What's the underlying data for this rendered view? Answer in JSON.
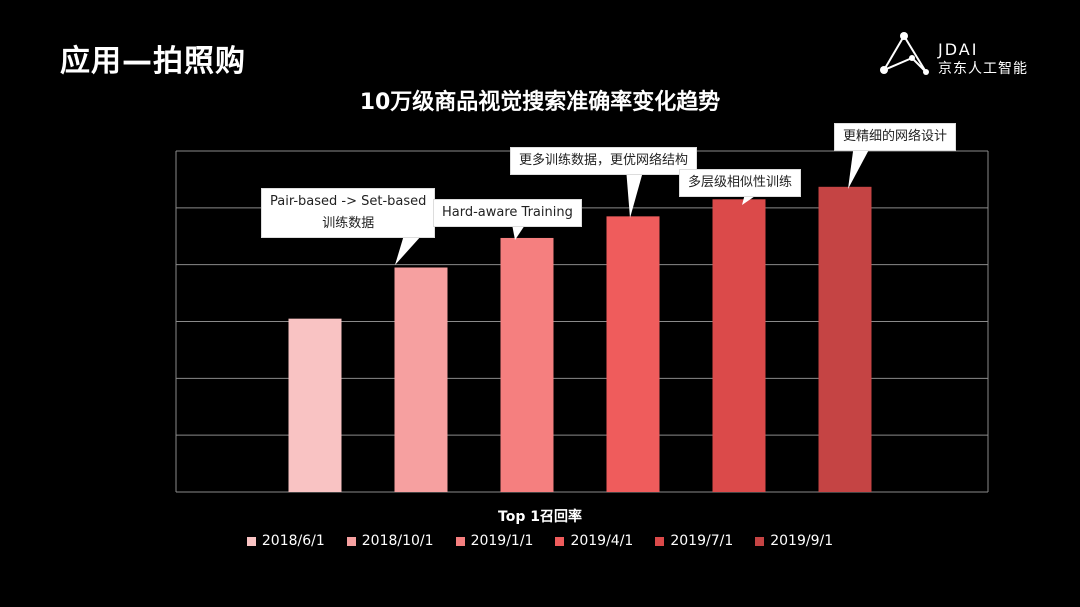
{
  "slide": {
    "title": "应用—拍照购",
    "logo_top": "JDAI",
    "logo_bottom": "京东人工智能"
  },
  "chart_data": {
    "type": "bar",
    "title": "10万级商品视觉搜索准确率变化趋势",
    "xlabel": "Top 1召回率",
    "ylabel": "",
    "ylim": [
      0,
      6
    ],
    "grid": true,
    "legend_placement": "bottom",
    "categories": [
      "2018/6/1",
      "2018/10/1",
      "2019/1/1",
      "2019/4/1",
      "2019/7/1",
      "2019/9/1"
    ],
    "values": [
      3.05,
      3.95,
      4.47,
      4.85,
      5.15,
      5.37
    ],
    "colors": [
      "#f9c3c3",
      "#f6a0a0",
      "#f57f7f",
      "#ef5c5c",
      "#db4a4a",
      "#c54444"
    ],
    "annotations": [
      {
        "index": 1,
        "lines": [
          "Pair-based -> Set-based",
          "训练数据"
        ]
      },
      {
        "index": 2,
        "lines": [
          "Hard-aware Training"
        ]
      },
      {
        "index": 3,
        "lines": [
          "更多训练数据，更优网络结构"
        ]
      },
      {
        "index": 4,
        "lines": [
          "多层级相似性训练"
        ]
      },
      {
        "index": 5,
        "lines": [
          "更精细的网络设计"
        ]
      }
    ]
  }
}
